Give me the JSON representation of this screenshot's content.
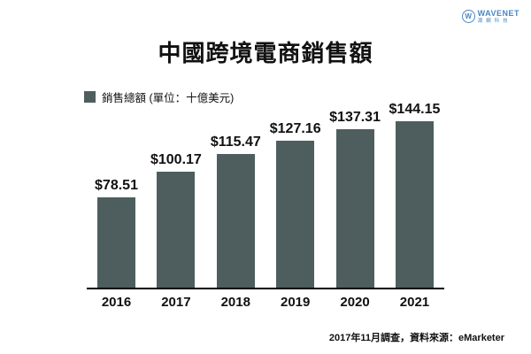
{
  "logo": {
    "brand": "WAVENET",
    "subtitle": "潮網科技",
    "mark_letter": "W",
    "color": "#4a86c6"
  },
  "title": "中國跨境電商銷售額",
  "legend": {
    "label": "銷售總額 (單位：十億美元)"
  },
  "chart_data": {
    "type": "bar",
    "title": "中國跨境電商銷售額",
    "series_name": "銷售總額",
    "unit": "十億美元",
    "categories": [
      "2016",
      "2017",
      "2018",
      "2019",
      "2020",
      "2021"
    ],
    "values": [
      78.51,
      100.17,
      115.47,
      127.16,
      137.31,
      144.15
    ],
    "value_labels": [
      "$78.51",
      "$100.17",
      "$115.47",
      "$127.16",
      "$137.31",
      "$144.15"
    ],
    "bar_color": "#4e5e5f",
    "axis_color": "#000000",
    "ylim": [
      0,
      150
    ],
    "grid": false,
    "legend_position": "top-left"
  },
  "footer": {
    "text": "2017年11月調查，資料來源：eMarketer"
  }
}
